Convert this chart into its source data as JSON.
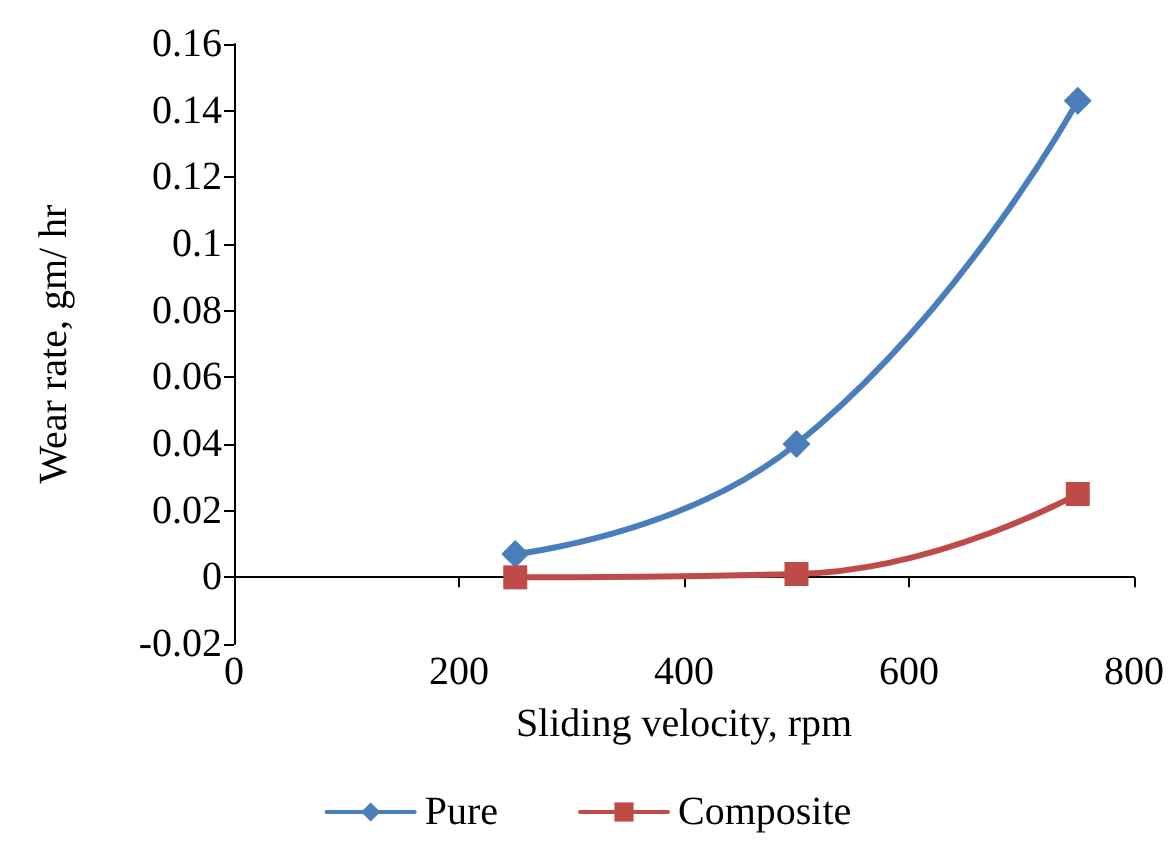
{
  "chart_data": {
    "type": "line",
    "xlabel": "Sliding velocity, rpm",
    "ylabel": "Wear rate, gm/ hr",
    "x": [
      250,
      500,
      750
    ],
    "series": [
      {
        "name": "Pure",
        "color": "#4a7ebb",
        "marker": "diamond",
        "values": [
          0.007,
          0.04,
          0.143
        ]
      },
      {
        "name": "Composite",
        "color": "#be4b48",
        "marker": "square",
        "values": [
          0,
          0.001,
          0.025
        ]
      }
    ],
    "xlim": [
      0,
      800
    ],
    "xticks": [
      0,
      200,
      400,
      600,
      800
    ],
    "ylim": [
      -0.02,
      0.16
    ],
    "yticks": [
      -0.02,
      0,
      0.02,
      0.04,
      0.06,
      0.08,
      0.1,
      0.12,
      0.14,
      0.16
    ],
    "grid": false,
    "legend": "bottom"
  }
}
